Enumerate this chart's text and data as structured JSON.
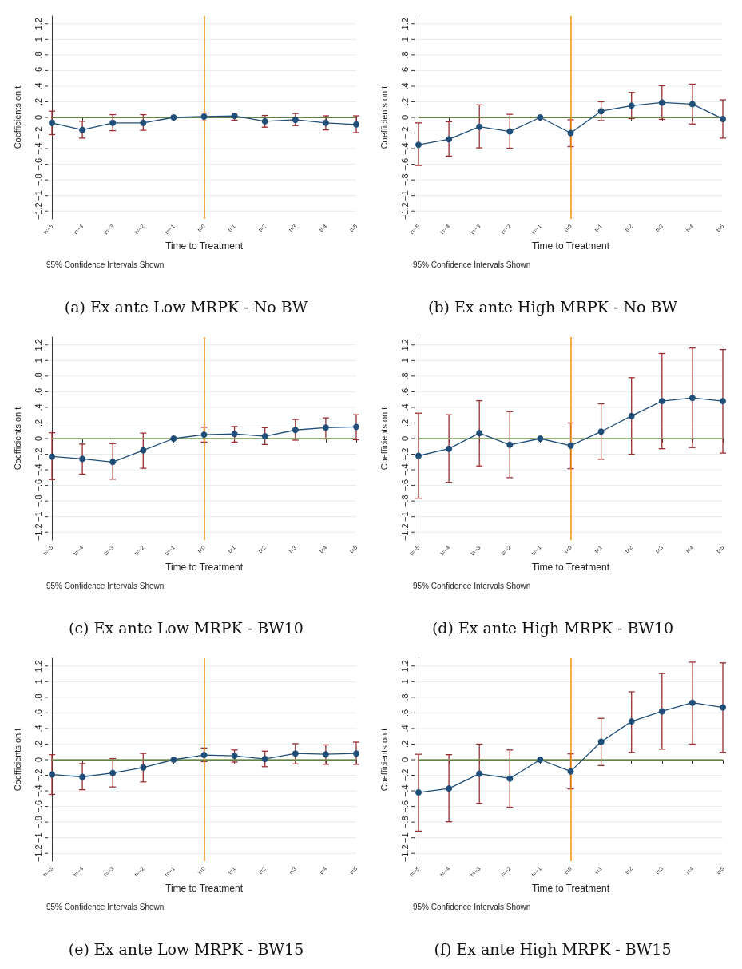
{
  "chart_data": [
    {
      "type": "line",
      "title": "(a) Ex ante Low MRPK - No BW",
      "xlabel": "Time to Treatment",
      "ylabel": "Coefficients on t",
      "annotations": [
        "95% Confidence Intervals Shown"
      ],
      "categories": [
        "t=−5",
        "t=−4",
        "t=−3",
        "t=−2",
        "t=−1",
        "t=0",
        "t=1",
        "t=2",
        "t=3",
        "t=4",
        "t=5"
      ],
      "series": [
        {
          "color": "#1f4e79",
          "values": [
            -0.07,
            -0.16,
            -0.07,
            -0.07,
            0,
            0.01,
            0.02,
            -0.05,
            -0.03,
            -0.07,
            -0.09
          ],
          "errors": [
            [
              -0.22,
              0.08
            ],
            [
              -0.265,
              -0.05
            ],
            [
              -0.17,
              0.035
            ],
            [
              -0.165,
              0.035
            ],
            null,
            [
              -0.045,
              0.055
            ],
            [
              -0.035,
              0.055
            ],
            [
              -0.125,
              0.025
            ],
            [
              -0.105,
              0.05
            ],
            [
              -0.16,
              0.02
            ],
            [
              -0.195,
              0.02
            ]
          ]
        }
      ],
      "ylim": [
        -1.3,
        1.3
      ],
      "yticks": [
        {
          "value": -1.2,
          "label": "−1.2"
        },
        {
          "value": -1,
          "label": "−1"
        },
        {
          "value": -0.8,
          "label": "−.8"
        },
        {
          "value": -0.6,
          "label": "−.6"
        },
        {
          "value": -0.4,
          "label": "−.4"
        },
        {
          "value": -0.2,
          "label": "−.2"
        },
        {
          "value": 0,
          "label": "0"
        },
        {
          "value": 0.2,
          "label": ".2"
        },
        {
          "value": 0.4,
          "label": ".4"
        },
        {
          "value": 0.6,
          "label": ".6"
        },
        {
          "value": 0.8,
          "label": ".8"
        },
        {
          "value": 1,
          "label": "1"
        },
        {
          "value": 1.2,
          "label": "1.2"
        }
      ],
      "ref_lines": [
        {
          "axis": "y",
          "value": 0,
          "color": "#7a9a55"
        },
        {
          "axis": "x",
          "value": "t=0",
          "color": "#f0900a"
        }
      ],
      "grid": "y",
      "marker": "circle",
      "line_style": "solid"
    },
    {
      "type": "line",
      "title": "(b) Ex ante High MRPK - No BW",
      "xlabel": "Time to Treatment",
      "ylabel": "Coefficients on t",
      "annotations": [
        "95% Confidence Intervals Shown"
      ],
      "categories": [
        "t=−5",
        "t=−4",
        "t=−3",
        "t=−2",
        "t=−1",
        "t=0",
        "t=1",
        "t=2",
        "t=3",
        "t=4",
        "t=5"
      ],
      "series": [
        {
          "color": "#1f4e79",
          "values": [
            -0.35,
            -0.28,
            -0.12,
            -0.18,
            0,
            -0.2,
            0.08,
            0.15,
            0.19,
            0.17,
            -0.02
          ],
          "errors": [
            [
              -0.615,
              -0.07
            ],
            [
              -0.495,
              -0.055
            ],
            [
              -0.39,
              0.16
            ],
            [
              -0.395,
              0.04
            ],
            null,
            [
              -0.375,
              -0.03
            ],
            [
              -0.04,
              0.2
            ],
            [
              -0.015,
              0.32
            ],
            [
              -0.025,
              0.405
            ],
            [
              -0.085,
              0.425
            ],
            [
              -0.265,
              0.225
            ]
          ]
        }
      ],
      "ylim": [
        -1.3,
        1.3
      ],
      "yticks": [
        {
          "value": -1.2,
          "label": "−1.2"
        },
        {
          "value": -1,
          "label": "−1"
        },
        {
          "value": -0.8,
          "label": "−.8"
        },
        {
          "value": -0.6,
          "label": "−.6"
        },
        {
          "value": -0.4,
          "label": "−.4"
        },
        {
          "value": -0.2,
          "label": "−.2"
        },
        {
          "value": 0,
          "label": "0"
        },
        {
          "value": 0.2,
          "label": ".2"
        },
        {
          "value": 0.4,
          "label": ".4"
        },
        {
          "value": 0.6,
          "label": ".6"
        },
        {
          "value": 0.8,
          "label": ".8"
        },
        {
          "value": 1,
          "label": "1"
        },
        {
          "value": 1.2,
          "label": "1.2"
        }
      ],
      "ref_lines": [
        {
          "axis": "y",
          "value": 0,
          "color": "#7a9a55"
        },
        {
          "axis": "x",
          "value": "t=0",
          "color": "#f0900a"
        }
      ],
      "grid": "y",
      "marker": "circle",
      "line_style": "solid"
    },
    {
      "type": "line",
      "title": "(c) Ex ante Low MRPK - BW10",
      "xlabel": "Time to Treatment",
      "ylabel": "Coefficients on t",
      "annotations": [
        "95% Confidence Intervals Shown"
      ],
      "categories": [
        "t=−5",
        "t=−4",
        "t=−3",
        "t=−2",
        "t=−1",
        "t=0",
        "t=1",
        "t=2",
        "t=3",
        "t=4",
        "t=5"
      ],
      "series": [
        {
          "color": "#1f4e79",
          "values": [
            -0.23,
            -0.26,
            -0.3,
            -0.15,
            0,
            0.05,
            0.06,
            0.03,
            0.11,
            0.14,
            0.15
          ],
          "errors": [
            [
              -0.525,
              0.075
            ],
            [
              -0.455,
              -0.07
            ],
            [
              -0.52,
              -0.065
            ],
            [
              -0.38,
              0.07
            ],
            null,
            [
              -0.045,
              0.145
            ],
            [
              -0.045,
              0.155
            ],
            [
              -0.075,
              0.14
            ],
            [
              -0.02,
              0.245
            ],
            [
              -0.005,
              0.265
            ],
            [
              -0.015,
              0.305
            ]
          ]
        }
      ],
      "ylim": [
        -1.3,
        1.3
      ],
      "yticks": [
        {
          "value": -1.2,
          "label": "−1.2"
        },
        {
          "value": -1,
          "label": "−1"
        },
        {
          "value": -0.8,
          "label": "−.8"
        },
        {
          "value": -0.6,
          "label": "−.6"
        },
        {
          "value": -0.4,
          "label": "−.4"
        },
        {
          "value": -0.2,
          "label": "−.2"
        },
        {
          "value": 0,
          "label": "0"
        },
        {
          "value": 0.2,
          "label": ".2"
        },
        {
          "value": 0.4,
          "label": ".4"
        },
        {
          "value": 0.6,
          "label": ".6"
        },
        {
          "value": 0.8,
          "label": ".8"
        },
        {
          "value": 1,
          "label": "1"
        },
        {
          "value": 1.2,
          "label": "1.2"
        }
      ],
      "ref_lines": [
        {
          "axis": "y",
          "value": 0,
          "color": "#7a9a55"
        },
        {
          "axis": "x",
          "value": "t=0",
          "color": "#f0900a"
        }
      ],
      "grid": "y",
      "marker": "circle",
      "line_style": "solid"
    },
    {
      "type": "line",
      "title": "(d) Ex ante High MRPK - BW10",
      "xlabel": "Time to Treatment",
      "ylabel": "Coefficients on t",
      "annotations": [
        "95% Confidence Intervals Shown"
      ],
      "categories": [
        "t=−5",
        "t=−4",
        "t=−3",
        "t=−2",
        "t=−1",
        "t=0",
        "t=1",
        "t=2",
        "t=3",
        "t=4",
        "t=5"
      ],
      "series": [
        {
          "color": "#1f4e79",
          "values": [
            -0.22,
            -0.13,
            0.07,
            -0.08,
            0,
            -0.09,
            0.09,
            0.29,
            0.48,
            0.52,
            0.48
          ],
          "errors": [
            [
              -0.765,
              0.325
            ],
            [
              -0.56,
              0.305
            ],
            [
              -0.35,
              0.485
            ],
            [
              -0.5,
              0.345
            ],
            null,
            [
              -0.385,
              0.2
            ],
            [
              -0.265,
              0.445
            ],
            [
              -0.2,
              0.78
            ],
            [
              -0.13,
              1.09
            ],
            [
              -0.115,
              1.16
            ],
            [
              -0.185,
              1.14
            ]
          ]
        }
      ],
      "ylim": [
        -1.3,
        1.3
      ],
      "yticks": [
        {
          "value": -1.2,
          "label": "−1.2"
        },
        {
          "value": -1,
          "label": "−1"
        },
        {
          "value": -0.8,
          "label": "−.8"
        },
        {
          "value": -0.6,
          "label": "−.6"
        },
        {
          "value": -0.4,
          "label": "−.4"
        },
        {
          "value": -0.2,
          "label": "−.2"
        },
        {
          "value": 0,
          "label": "0"
        },
        {
          "value": 0.2,
          "label": ".2"
        },
        {
          "value": 0.4,
          "label": ".4"
        },
        {
          "value": 0.6,
          "label": ".6"
        },
        {
          "value": 0.8,
          "label": ".8"
        },
        {
          "value": 1,
          "label": "1"
        },
        {
          "value": 1.2,
          "label": "1.2"
        }
      ],
      "ref_lines": [
        {
          "axis": "y",
          "value": 0,
          "color": "#7a9a55"
        },
        {
          "axis": "x",
          "value": "t=0",
          "color": "#f0900a"
        }
      ],
      "grid": "y",
      "marker": "circle",
      "line_style": "solid"
    },
    {
      "type": "line",
      "title": "(e) Ex ante Low MRPK - BW15",
      "xlabel": "Time to Treatment",
      "ylabel": "Coefficients on t",
      "annotations": [
        "95% Confidence Intervals Shown"
      ],
      "categories": [
        "t=−5",
        "t=−4",
        "t=−3",
        "t=−2",
        "t=−1",
        "t=0",
        "t=1",
        "t=2",
        "t=3",
        "t=4",
        "t=5"
      ],
      "series": [
        {
          "color": "#1f4e79",
          "values": [
            -0.19,
            -0.22,
            -0.17,
            -0.1,
            0,
            0.06,
            0.05,
            0.01,
            0.08,
            0.07,
            0.08
          ],
          "errors": [
            [
              -0.445,
              0.065
            ],
            [
              -0.385,
              -0.05
            ],
            [
              -0.35,
              0.015
            ],
            [
              -0.285,
              0.08
            ],
            null,
            [
              -0.025,
              0.15
            ],
            [
              -0.03,
              0.125
            ],
            [
              -0.09,
              0.11
            ],
            [
              -0.055,
              0.205
            ],
            [
              -0.06,
              0.19
            ],
            [
              -0.06,
              0.225
            ]
          ]
        }
      ],
      "ylim": [
        -1.3,
        1.3
      ],
      "yticks": [
        {
          "value": -1.2,
          "label": "−1.2"
        },
        {
          "value": -1,
          "label": "−1"
        },
        {
          "value": -0.8,
          "label": "−.8"
        },
        {
          "value": -0.6,
          "label": "−.6"
        },
        {
          "value": -0.4,
          "label": "−.4"
        },
        {
          "value": -0.2,
          "label": "−.2"
        },
        {
          "value": 0,
          "label": "0"
        },
        {
          "value": 0.2,
          "label": ".2"
        },
        {
          "value": 0.4,
          "label": ".4"
        },
        {
          "value": 0.6,
          "label": ".6"
        },
        {
          "value": 0.8,
          "label": ".8"
        },
        {
          "value": 1,
          "label": "1"
        },
        {
          "value": 1.2,
          "label": "1.2"
        }
      ],
      "ref_lines": [
        {
          "axis": "y",
          "value": 0,
          "color": "#7a9a55"
        },
        {
          "axis": "x",
          "value": "t=0",
          "color": "#f0900a"
        }
      ],
      "grid": "y",
      "marker": "circle",
      "line_style": "solid"
    },
    {
      "type": "line",
      "title": "(f) Ex ante High MRPK - BW15",
      "xlabel": "Time to Treatment",
      "ylabel": "Coefficients on t",
      "annotations": [
        "95% Confidence Intervals Shown"
      ],
      "categories": [
        "t=−5",
        "t=−4",
        "t=−3",
        "t=−2",
        "t=−1",
        "t=0",
        "t=1",
        "t=2",
        "t=3",
        "t=4",
        "t=5"
      ],
      "series": [
        {
          "color": "#1f4e79",
          "values": [
            -0.42,
            -0.37,
            -0.18,
            -0.24,
            0,
            -0.15,
            0.23,
            0.49,
            0.62,
            0.73,
            0.67
          ],
          "errors": [
            [
              -0.915,
              0.07
            ],
            [
              -0.795,
              0.065
            ],
            [
              -0.56,
              0.2
            ],
            [
              -0.61,
              0.125
            ],
            null,
            [
              -0.375,
              0.075
            ],
            [
              -0.075,
              0.53
            ],
            [
              0.095,
              0.87
            ],
            [
              0.135,
              1.105
            ],
            [
              0.2,
              1.25
            ],
            [
              0.095,
              1.24
            ]
          ]
        }
      ],
      "ylim": [
        -1.3,
        1.3
      ],
      "yticks": [
        {
          "value": -1.2,
          "label": "−1.2"
        },
        {
          "value": -1,
          "label": "−1"
        },
        {
          "value": -0.8,
          "label": "−.8"
        },
        {
          "value": -0.6,
          "label": "−.6"
        },
        {
          "value": -0.4,
          "label": "−.4"
        },
        {
          "value": -0.2,
          "label": "−.2"
        },
        {
          "value": 0,
          "label": "0"
        },
        {
          "value": 0.2,
          "label": ".2"
        },
        {
          "value": 0.4,
          "label": ".4"
        },
        {
          "value": 0.6,
          "label": ".6"
        },
        {
          "value": 0.8,
          "label": ".8"
        },
        {
          "value": 1,
          "label": "1"
        },
        {
          "value": 1.2,
          "label": "1.2"
        }
      ],
      "ref_lines": [
        {
          "axis": "y",
          "value": 0,
          "color": "#7a9a55"
        },
        {
          "axis": "x",
          "value": "t=0",
          "color": "#f0900a"
        }
      ],
      "grid": "y",
      "marker": "circle",
      "line_style": "solid"
    }
  ]
}
